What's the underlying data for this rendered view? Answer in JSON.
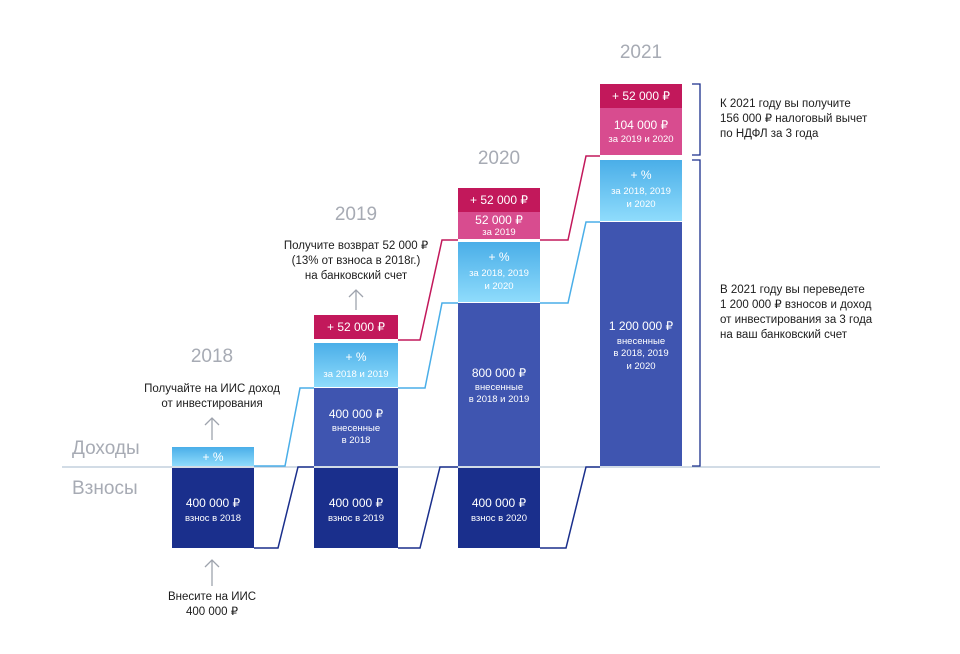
{
  "labels": {
    "income": "Доходы",
    "contributions": "Взносы"
  },
  "years": {
    "y2018": "2018",
    "y2019": "2019",
    "y2020": "2020",
    "y2021": "2021"
  },
  "col2018": {
    "contrib_value": "400 000 ₽",
    "contrib_caption": "взнос в 2018",
    "interest": "+ %"
  },
  "col2019": {
    "contrib_value": "400 000 ₽",
    "contrib_caption": "взнос в 2019",
    "prev_value": "400 000 ₽",
    "prev_caption_1": "внесенные",
    "prev_caption_2": "в 2018",
    "interest": "+ %",
    "interest_caption": "за 2018 и 2019",
    "tax": "+ 52 000 ₽"
  },
  "col2020": {
    "contrib_value": "400 000 ₽",
    "contrib_caption": "взнос в 2020",
    "prev_value": "800 000 ₽",
    "prev_caption_1": "внесенные",
    "prev_caption_2": "в 2018 и 2019",
    "interest": "+ %",
    "interest_caption_1": "за 2018, 2019",
    "interest_caption_2": "и 2020",
    "refund": "52 000 ₽",
    "refund_caption": "за 2019",
    "tax": "+ 52 000 ₽"
  },
  "col2021": {
    "prev_value": "1 200 000 ₽",
    "prev_caption_1": "внесенные",
    "prev_caption_2": "в 2018, 2019",
    "prev_caption_3": "и 2020",
    "interest": "+ %",
    "interest_caption_1": "за 2018, 2019",
    "interest_caption_2": "и 2020",
    "refund": "104 000 ₽",
    "refund_caption": "за 2019 и 2020",
    "tax": "+ 52 000 ₽"
  },
  "notes": {
    "deposit_1": "Внесите на ИИС",
    "deposit_2": "400 000 ₽",
    "income_1": "Получайте на ИИС доход",
    "income_2": "от инвестирования",
    "refund_1": "Получите возврат 52 000 ₽",
    "refund_2": "(13% от взноса в 2018г.)",
    "refund_3": "на банковский счет",
    "deduction_1": "К 2021 году вы получите",
    "deduction_2": "156 000 ₽ налоговый вычет",
    "deduction_3": "по НДФЛ за 3 года",
    "transfer_1": "В 2021 году вы переведете",
    "transfer_2": "1 200 000 ₽ взносов и доход",
    "transfer_3": "от инвестирования за 3 года",
    "transfer_4": "на ваш банковский счет"
  },
  "colors": {
    "contribution": "#1a2f8c",
    "accumulated": "#3f55b0",
    "interest_light": "#88d9fb",
    "interest_mid": "#4aaee8",
    "tax": "#c2185b",
    "refund": "#d84c8f",
    "baseline": "#b8c7d6",
    "connector_dark": "#1a2f8c",
    "connector_blue": "#4aaee8",
    "connector_pink": "#c2185b",
    "bracket": "#1a2f8c"
  }
}
